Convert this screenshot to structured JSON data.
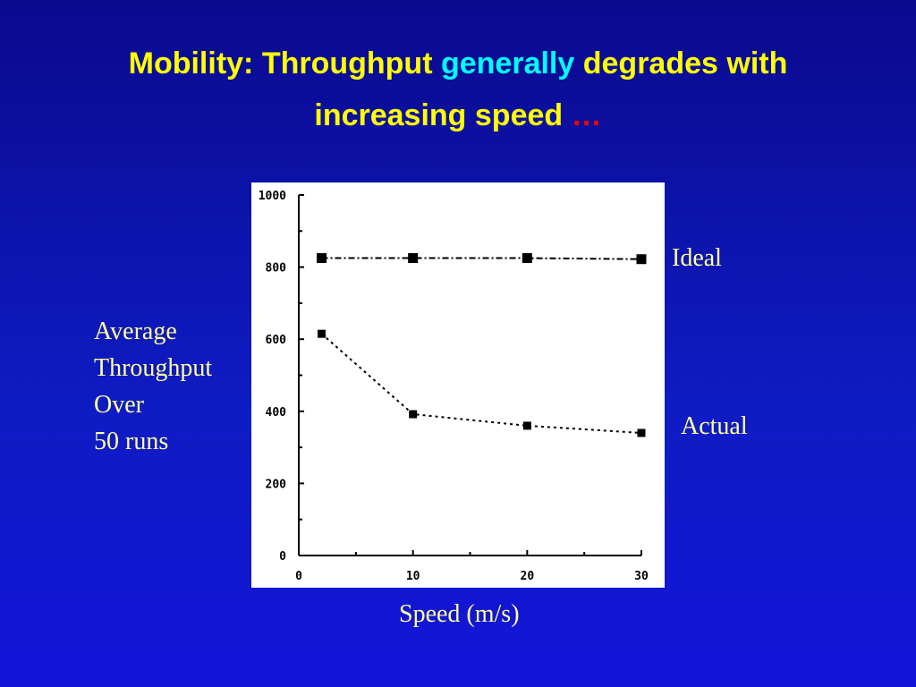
{
  "slide": {
    "title_part1": "Mobility: Throughput",
    "title_highlight": "generally",
    "title_part2": "degrades with",
    "title_line2": "increasing speed",
    "title_ellipsis": "…",
    "y_label_lines": [
      "Average",
      "Throughput",
      "Over",
      "50 runs"
    ],
    "x_label": "Speed (m/s)",
    "colors": {
      "background": "#0f1cc4",
      "title": "#ffff00",
      "highlight": "#00ffff",
      "ellipsis": "#ff0000",
      "labels": "#ffff99",
      "plot_background": "#ffffff",
      "marks": "#000000"
    }
  },
  "chart_data": {
    "type": "line",
    "x_ticks": [
      "0",
      "10",
      "20",
      "30"
    ],
    "y_ticks": [
      "0",
      "200",
      "400",
      "600",
      "800",
      "1000"
    ],
    "xlim": [
      0,
      30
    ],
    "ylim": [
      0,
      1000
    ],
    "grid": false,
    "series": [
      {
        "name": "Ideal",
        "marker": "square",
        "line": "dash-dot",
        "x": [
          2,
          10,
          20,
          30
        ],
        "y": [
          825,
          825,
          825,
          822
        ]
      },
      {
        "name": "Actual",
        "marker": "square",
        "line": "dotted",
        "x": [
          2,
          10,
          20,
          30
        ],
        "y": [
          615,
          392,
          360,
          340
        ]
      }
    ]
  }
}
